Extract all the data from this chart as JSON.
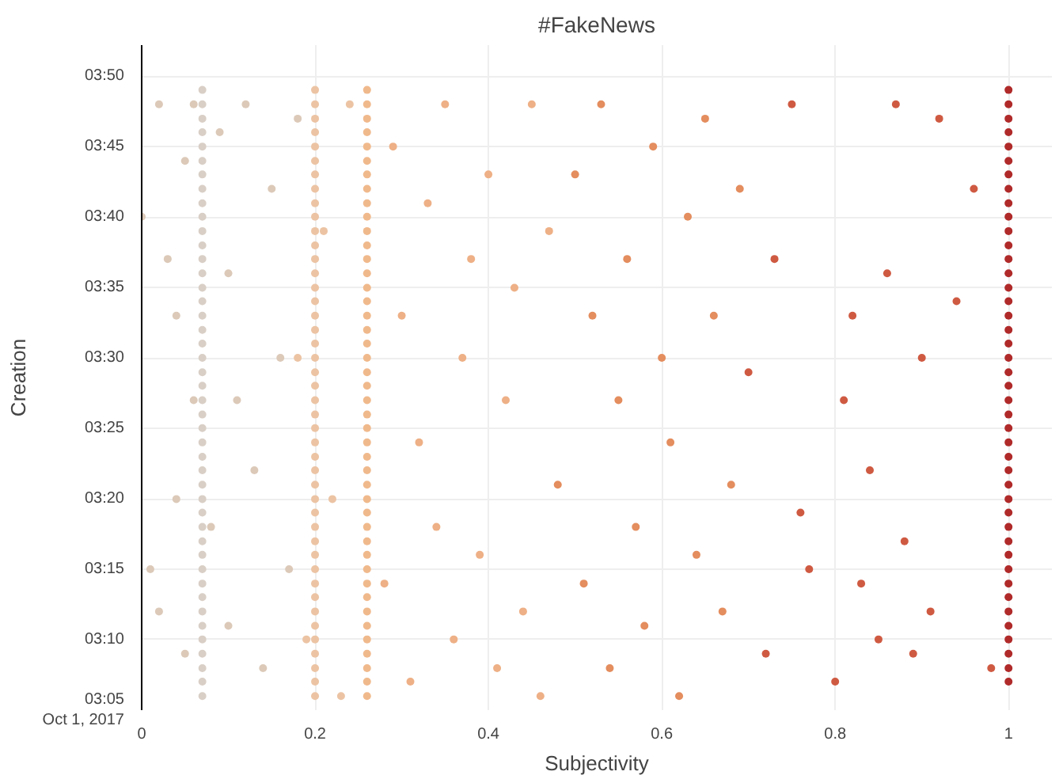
{
  "chart_data": {
    "type": "scatter",
    "title": "#FakeNews",
    "xlabel": "Subjectivity",
    "ylabel": "Creation",
    "xlim": [
      0,
      1.05
    ],
    "ylim": [
      3.0833,
      3.87
    ],
    "xticks": [
      0,
      0.2,
      0.4,
      0.6,
      0.8,
      1
    ],
    "yticks": [
      {
        "value": 3.0833,
        "label": "03:05\nOct 1, 2017"
      },
      {
        "value": 3.1667,
        "label": "03:10"
      },
      {
        "value": 3.25,
        "label": "03:15"
      },
      {
        "value": 3.3333,
        "label": "03:20"
      },
      {
        "value": 3.4167,
        "label": "03:25"
      },
      {
        "value": 3.5,
        "label": "03:30"
      },
      {
        "value": 3.5833,
        "label": "03:35"
      },
      {
        "value": 3.6667,
        "label": "03:40"
      },
      {
        "value": 3.75,
        "label": "03:45"
      },
      {
        "value": 3.8333,
        "label": "03:50"
      }
    ],
    "grid": true,
    "marker": "circle",
    "series": [
      {
        "color": "#d9cfc6",
        "x": [
          0.07,
          0.07,
          0.07,
          0.07,
          0.07,
          0.07,
          0.07,
          0.07,
          0.07,
          0.07,
          0.07,
          0.07,
          0.07,
          0.07,
          0.07,
          0.07,
          0.07,
          0.07,
          0.07,
          0.07,
          0.07,
          0.07,
          0.07,
          0.07,
          0.07,
          0.07,
          0.07,
          0.07,
          0.07,
          0.07,
          0.07,
          0.07,
          0.07,
          0.07,
          0.07,
          0.07,
          0.07,
          0.07,
          0.07,
          0.07,
          0.07,
          0.07,
          0.07,
          0.07
        ],
        "values": [
          3.1,
          3.117,
          3.133,
          3.15,
          3.167,
          3.183,
          3.2,
          3.217,
          3.233,
          3.25,
          3.267,
          3.283,
          3.3,
          3.317,
          3.333,
          3.35,
          3.367,
          3.383,
          3.4,
          3.417,
          3.433,
          3.45,
          3.467,
          3.483,
          3.5,
          3.517,
          3.533,
          3.55,
          3.567,
          3.583,
          3.6,
          3.617,
          3.633,
          3.65,
          3.667,
          3.683,
          3.7,
          3.717,
          3.733,
          3.75,
          3.767,
          3.783,
          3.8,
          3.817
        ]
      },
      {
        "color": "#dcc9b8",
        "x": [
          0.0,
          0.01,
          0.02,
          0.02,
          0.03,
          0.04,
          0.04,
          0.05,
          0.05,
          0.06,
          0.06,
          0.08,
          0.09,
          0.1,
          0.1,
          0.11,
          0.12,
          0.13,
          0.14,
          0.15,
          0.16,
          0.17,
          0.18
        ],
        "values": [
          3.667,
          3.25,
          3.2,
          3.8,
          3.617,
          3.55,
          3.333,
          3.733,
          3.15,
          3.45,
          3.8,
          3.3,
          3.767,
          3.6,
          3.183,
          3.45,
          3.8,
          3.367,
          3.133,
          3.7,
          3.5,
          3.25,
          3.783
        ]
      },
      {
        "color": "#ecc4a4",
        "x": [
          0.2,
          0.2,
          0.2,
          0.2,
          0.2,
          0.2,
          0.2,
          0.2,
          0.2,
          0.2,
          0.2,
          0.2,
          0.2,
          0.2,
          0.2,
          0.2,
          0.2,
          0.2,
          0.2,
          0.2,
          0.2,
          0.2,
          0.2,
          0.2,
          0.2,
          0.2,
          0.2,
          0.2,
          0.2,
          0.2,
          0.2,
          0.2,
          0.2,
          0.2,
          0.2,
          0.2,
          0.2,
          0.2,
          0.2,
          0.2,
          0.2,
          0.2,
          0.2,
          0.2,
          0.18,
          0.19,
          0.21,
          0.22,
          0.23,
          0.24
        ],
        "values": [
          3.1,
          3.117,
          3.133,
          3.15,
          3.167,
          3.183,
          3.2,
          3.217,
          3.233,
          3.25,
          3.267,
          3.283,
          3.3,
          3.317,
          3.333,
          3.35,
          3.367,
          3.383,
          3.4,
          3.417,
          3.433,
          3.45,
          3.467,
          3.483,
          3.5,
          3.517,
          3.533,
          3.55,
          3.567,
          3.583,
          3.6,
          3.617,
          3.633,
          3.65,
          3.667,
          3.683,
          3.7,
          3.717,
          3.733,
          3.75,
          3.767,
          3.783,
          3.8,
          3.817,
          3.5,
          3.167,
          3.65,
          3.333,
          3.1,
          3.8
        ]
      },
      {
        "color": "#f0b98c",
        "x": [
          0.26,
          0.26,
          0.26,
          0.26,
          0.26,
          0.26,
          0.26,
          0.26,
          0.26,
          0.26,
          0.26,
          0.26,
          0.26,
          0.26,
          0.26,
          0.26,
          0.26,
          0.26,
          0.26,
          0.26,
          0.26,
          0.26,
          0.26,
          0.26,
          0.26,
          0.26,
          0.26,
          0.26,
          0.26,
          0.26,
          0.26,
          0.26,
          0.26,
          0.26,
          0.26,
          0.26,
          0.26,
          0.26,
          0.26,
          0.26,
          0.26,
          0.26,
          0.26,
          0.26
        ],
        "values": [
          3.1,
          3.117,
          3.133,
          3.15,
          3.167,
          3.183,
          3.2,
          3.217,
          3.233,
          3.25,
          3.267,
          3.283,
          3.3,
          3.317,
          3.333,
          3.35,
          3.367,
          3.383,
          3.4,
          3.417,
          3.433,
          3.45,
          3.467,
          3.483,
          3.5,
          3.517,
          3.533,
          3.55,
          3.567,
          3.583,
          3.6,
          3.617,
          3.633,
          3.65,
          3.667,
          3.683,
          3.7,
          3.717,
          3.733,
          3.75,
          3.767,
          3.783,
          3.8,
          3.817
        ]
      },
      {
        "color": "#eeb086",
        "x": [
          0.28,
          0.29,
          0.3,
          0.31,
          0.32,
          0.33,
          0.34,
          0.35,
          0.36,
          0.37,
          0.38,
          0.39,
          0.4,
          0.41,
          0.42,
          0.43,
          0.44,
          0.45,
          0.46,
          0.47
        ],
        "values": [
          3.233,
          3.75,
          3.55,
          3.117,
          3.4,
          3.683,
          3.3,
          3.8,
          3.167,
          3.5,
          3.617,
          3.267,
          3.717,
          3.133,
          3.45,
          3.583,
          3.2,
          3.8,
          3.1,
          3.65
        ]
      },
      {
        "color": "#e48d5e",
        "x": [
          0.48,
          0.5,
          0.51,
          0.52,
          0.53,
          0.54,
          0.55,
          0.56,
          0.57,
          0.58,
          0.59,
          0.6,
          0.61,
          0.62,
          0.63,
          0.64,
          0.65,
          0.66,
          0.67,
          0.68,
          0.69
        ],
        "values": [
          3.35,
          3.717,
          3.233,
          3.55,
          3.8,
          3.133,
          3.45,
          3.617,
          3.3,
          3.183,
          3.75,
          3.5,
          3.4,
          3.1,
          3.667,
          3.267,
          3.783,
          3.55,
          3.2,
          3.35,
          3.7
        ]
      },
      {
        "color": "#cf5a42",
        "x": [
          0.7,
          0.72,
          0.73,
          0.75,
          0.76,
          0.77,
          0.8,
          0.81,
          0.82,
          0.83,
          0.84,
          0.85,
          0.86,
          0.87,
          0.88,
          0.89,
          0.9,
          0.91,
          0.92,
          0.94,
          0.96,
          0.98
        ],
        "values": [
          3.483,
          3.15,
          3.617,
          3.8,
          3.317,
          3.25,
          3.117,
          3.45,
          3.55,
          3.233,
          3.367,
          3.167,
          3.6,
          3.8,
          3.283,
          3.15,
          3.5,
          3.2,
          3.783,
          3.567,
          3.7,
          3.133
        ]
      },
      {
        "color": "#b02a2a",
        "x": [
          1,
          1,
          1,
          1,
          1,
          1,
          1,
          1,
          1,
          1,
          1,
          1,
          1,
          1,
          1,
          1,
          1,
          1,
          1,
          1,
          1,
          1,
          1,
          1,
          1,
          1,
          1,
          1,
          1,
          1,
          1,
          1,
          1,
          1,
          1,
          1,
          1,
          1,
          1,
          1,
          1,
          1,
          1
        ],
        "values": [
          3.117,
          3.133,
          3.15,
          3.167,
          3.183,
          3.2,
          3.217,
          3.233,
          3.25,
          3.267,
          3.283,
          3.3,
          3.317,
          3.333,
          3.35,
          3.367,
          3.383,
          3.4,
          3.417,
          3.433,
          3.45,
          3.467,
          3.483,
          3.5,
          3.517,
          3.533,
          3.55,
          3.567,
          3.583,
          3.6,
          3.617,
          3.633,
          3.65,
          3.667,
          3.683,
          3.7,
          3.717,
          3.733,
          3.75,
          3.767,
          3.783,
          3.8,
          3.817
        ]
      }
    ]
  }
}
